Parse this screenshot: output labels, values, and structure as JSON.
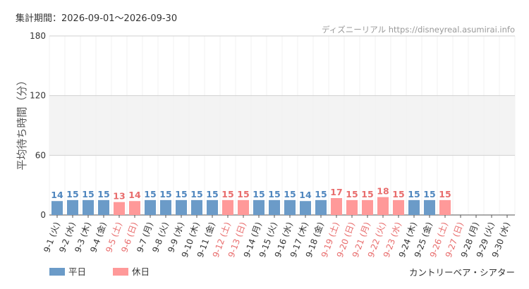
{
  "header": {
    "period": "集計期間：2026-09-01～2026-09-30",
    "source": "ディズニーリアル https://disneyreal.asumirai.info"
  },
  "footer": {
    "attraction": "カントリーベア・シアター"
  },
  "colors": {
    "weekday": "#6b9bc8",
    "holiday": "#ff9999",
    "weekday_label": "#4f86be",
    "holiday_label": "#e86c6c",
    "band": "#f3f3f3",
    "grid": "#e4e4e4"
  },
  "chart_data": {
    "type": "bar",
    "ylabel": "平均待ち時間（分）",
    "ylim": [
      0,
      180
    ],
    "yticks": [
      0,
      60,
      120,
      180
    ],
    "grid": true,
    "legend_position": "bottom-left",
    "legend": [
      {
        "key": "weekday",
        "label": "平日"
      },
      {
        "key": "holiday",
        "label": "休日"
      }
    ],
    "categories": [
      "9-1 (火)",
      "9-2 (水)",
      "9-3 (木)",
      "9-4 (金)",
      "9-5 (土)",
      "9-6 (日)",
      "9-7 (月)",
      "9-8 (火)",
      "9-9 (水)",
      "9-10 (木)",
      "9-11 (金)",
      "9-12 (土)",
      "9-13 (日)",
      "9-14 (月)",
      "9-15 (火)",
      "9-16 (水)",
      "9-17 (木)",
      "9-18 (金)",
      "9-19 (土)",
      "9-20 (日)",
      "9-21 (月)",
      "9-22 (火)",
      "9-23 (水)",
      "9-24 (木)",
      "9-25 (金)",
      "9-26 (土)",
      "9-27 (日)",
      "9-28 (月)",
      "9-29 (火)",
      "9-30 (水)"
    ],
    "values": [
      14,
      15,
      15,
      15,
      13,
      14,
      15,
      15,
      15,
      15,
      15,
      15,
      15,
      15,
      15,
      15,
      14,
      15,
      17,
      15,
      15,
      18,
      15,
      15,
      15,
      15,
      null,
      null,
      null,
      null
    ],
    "day_type": [
      "weekday",
      "weekday",
      "weekday",
      "weekday",
      "holiday",
      "holiday",
      "weekday",
      "weekday",
      "weekday",
      "weekday",
      "weekday",
      "holiday",
      "holiday",
      "weekday",
      "weekday",
      "weekday",
      "weekday",
      "weekday",
      "holiday",
      "holiday",
      "holiday",
      "holiday",
      "holiday",
      "weekday",
      "weekday",
      "holiday",
      "holiday",
      "weekday",
      "weekday",
      "weekday"
    ]
  }
}
